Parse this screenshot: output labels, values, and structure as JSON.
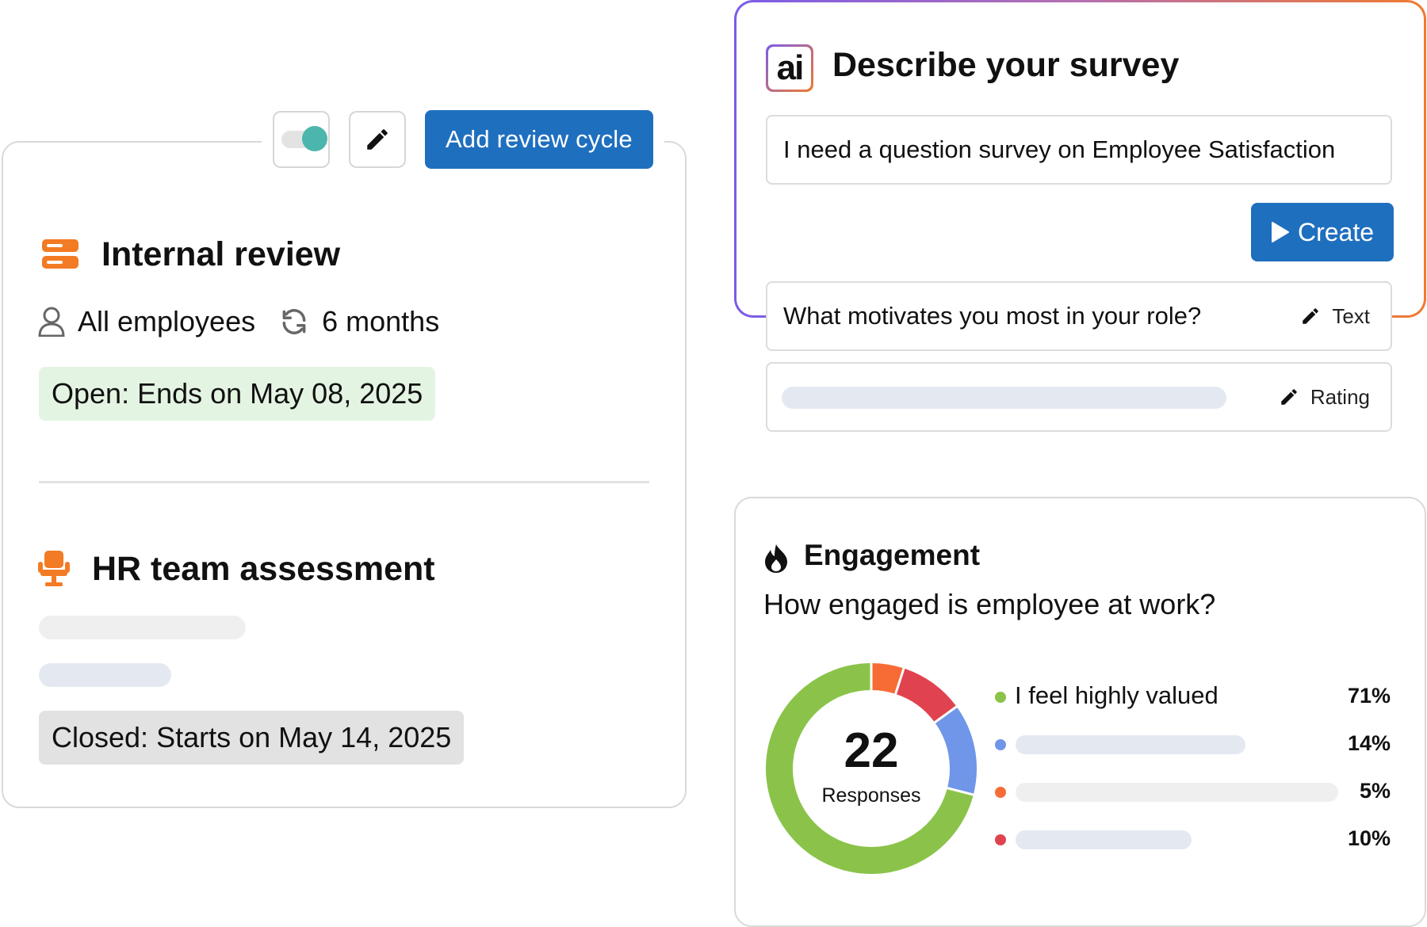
{
  "review_panel": {
    "toolbar": {
      "add_button_label": "Add review cycle"
    },
    "items": [
      {
        "title": "Internal review",
        "audience": "All employees",
        "frequency": "6 months",
        "status": "Open: Ends on May 08, 2025"
      },
      {
        "title": "HR team assessment",
        "status": "Closed: Starts on May 14, 2025"
      }
    ]
  },
  "survey_builder": {
    "logo_text": "ai",
    "title": "Describe your survey",
    "prompt_value": "I need a question survey on Employee Satisfaction",
    "create_label": "Create",
    "questions": [
      {
        "text": "What motivates you most in your role?",
        "type": "Text"
      },
      {
        "text": "",
        "type": "Rating"
      }
    ]
  },
  "engagement": {
    "title": "Engagement",
    "question": "How engaged is employee at work?",
    "total": "22",
    "total_label": "Responses",
    "legend": [
      {
        "label": "I feel highly valued",
        "pct_text": "71%"
      },
      {
        "label": "",
        "pct_text": "14%"
      },
      {
        "label": "",
        "pct_text": "5%"
      },
      {
        "label": "",
        "pct_text": "10%"
      }
    ]
  },
  "chart_data": {
    "type": "pie",
    "categories": [
      "I feel highly valued",
      "",
      "",
      ""
    ],
    "values": [
      71,
      14,
      5,
      10
    ],
    "colors": [
      "#8bc34a",
      "#6f96e8",
      "#f76c35",
      "#e0434f"
    ]
  },
  "colors": {
    "accent_blue": "#1f6fbf",
    "orange_icon": "#f37b24",
    "open_badge_bg": "#e4f4e2",
    "closed_badge_bg": "#e2e2e2",
    "toggle_knob": "#4db6ac"
  }
}
